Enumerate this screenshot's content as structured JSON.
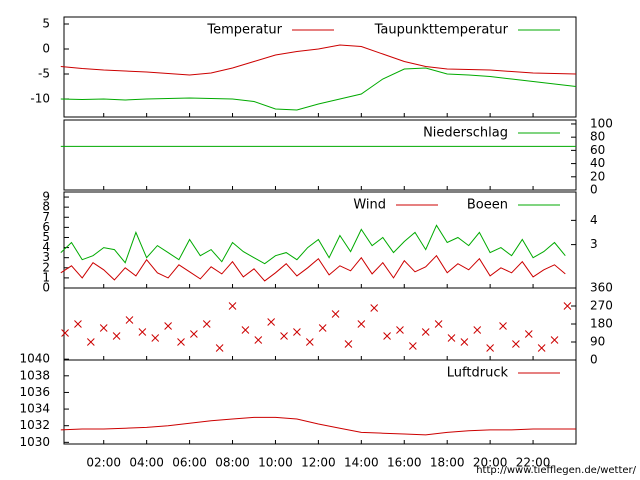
{
  "chart_data": [
    {
      "type": "line",
      "x": [
        0,
        1,
        2,
        3,
        4,
        5,
        6,
        7,
        8,
        9,
        10,
        11,
        12,
        13,
        14,
        15,
        16,
        17,
        18,
        19,
        20,
        21,
        22,
        23,
        24
      ],
      "series": [
        {
          "name": "Temperatur",
          "color": "#cc0000",
          "values": [
            -3.5,
            -3.9,
            -4.2,
            -4.4,
            -4.6,
            -4.9,
            -5.2,
            -4.8,
            -3.8,
            -2.5,
            -1.2,
            -0.5,
            0,
            0.8,
            0.5,
            -1,
            -2.5,
            -3.5,
            -4,
            -4.1,
            -4.2,
            -4.5,
            -4.8,
            -4.9,
            -5
          ]
        },
        {
          "name": "Taupunkttemperatur",
          "color": "#00aa00",
          "values": [
            -10,
            -10.1,
            -10,
            -10.2,
            -10,
            -9.9,
            -9.8,
            -9.9,
            -10,
            -10.5,
            -12,
            -12.2,
            -11,
            -10,
            -9,
            -6,
            -4,
            -3.8,
            -5,
            -5.2,
            -5.5,
            -6,
            -6.5,
            -7,
            -7.5
          ]
        }
      ],
      "xlim": [
        0.15,
        24
      ],
      "ylim": [
        -13.6,
        6.4
      ],
      "yticks": [
        -10,
        -5,
        0,
        5
      ],
      "yaxis_side": "left"
    },
    {
      "type": "line",
      "x": [
        0,
        24
      ],
      "series": [
        {
          "name": "Niederschlag",
          "color": "#00aa00",
          "values": [
            66,
            66
          ]
        }
      ],
      "xlim": [
        0.15,
        24
      ],
      "ylim": [
        0,
        106
      ],
      "yticks": [
        0,
        20,
        40,
        60,
        80,
        100
      ],
      "yaxis_side": "right"
    },
    {
      "type": "line",
      "x": [
        0,
        0.5,
        1,
        1.5,
        2,
        2.5,
        3,
        3.5,
        4,
        4.5,
        5,
        5.5,
        6,
        6.5,
        7,
        7.5,
        8,
        8.5,
        9,
        9.5,
        10,
        10.5,
        11,
        11.5,
        12,
        12.5,
        13,
        13.5,
        14,
        14.5,
        15,
        15.5,
        16,
        16.5,
        17,
        17.5,
        18,
        18.5,
        19,
        19.5,
        20,
        20.5,
        21,
        21.5,
        22,
        22.5,
        23,
        23.5
      ],
      "series": [
        {
          "name": "Wind",
          "color": "#cc0000",
          "values": [
            1.5,
            2.2,
            1.0,
            2.5,
            1.8,
            0.8,
            2.0,
            1.2,
            2.8,
            1.5,
            1.0,
            2.3,
            1.6,
            0.9,
            2.1,
            1.4,
            2.6,
            1.1,
            1.9,
            0.7,
            1.5,
            2.4,
            1.2,
            2.0,
            2.9,
            1.3,
            2.2,
            1.7,
            3.0,
            1.4,
            2.5,
            1.0,
            2.7,
            1.6,
            2.1,
            3.2,
            1.5,
            2.4,
            1.8,
            2.9,
            1.2,
            2.0,
            1.5,
            2.6,
            1.1,
            1.8,
            2.3,
            1.4
          ]
        },
        {
          "name": "Boeen",
          "color": "#00aa00",
          "values": [
            3.5,
            4.5,
            2.8,
            3.2,
            4.0,
            3.8,
            2.5,
            5.5,
            3.0,
            4.2,
            3.5,
            2.8,
            4.8,
            3.2,
            3.8,
            2.6,
            4.5,
            3.6,
            3.0,
            2.4,
            3.2,
            3.5,
            2.8,
            4.0,
            4.8,
            3.0,
            5.2,
            3.6,
            5.8,
            4.2,
            5.0,
            3.5,
            4.6,
            5.5,
            3.8,
            6.2,
            4.5,
            5.0,
            4.2,
            5.5,
            3.5,
            4.0,
            3.2,
            4.8,
            3.0,
            3.6,
            4.5,
            3.2
          ]
        }
      ],
      "xlim": [
        0.15,
        24
      ],
      "ylim": [
        0,
        9.5
      ],
      "yticks": [
        0,
        1,
        2,
        3,
        4,
        5,
        6,
        7,
        8,
        9
      ],
      "yaxis_side": "left",
      "y2lim": [
        1.21,
        5.17
      ],
      "y2ticks": [
        3,
        4
      ]
    },
    {
      "type": "scatter",
      "x": [
        0.2,
        0.8,
        1.4,
        2.0,
        2.6,
        3.2,
        3.8,
        4.4,
        5.0,
        5.6,
        6.2,
        6.8,
        7.4,
        8.0,
        8.6,
        9.2,
        9.8,
        10.4,
        11.0,
        11.6,
        12.2,
        12.8,
        13.4,
        14.0,
        14.6,
        15.2,
        15.8,
        16.4,
        17.0,
        17.6,
        18.2,
        18.8,
        19.4,
        20.0,
        20.6,
        21.2,
        21.8,
        22.4,
        23.0,
        23.6
      ],
      "series": [
        {
          "name": null,
          "color": "#cc0000",
          "values": [
            135,
            180,
            90,
            160,
            120,
            200,
            140,
            110,
            170,
            90,
            130,
            180,
            60,
            270,
            150,
            100,
            190,
            120,
            140,
            90,
            160,
            230,
            80,
            180,
            260,
            120,
            150,
            70,
            140,
            180,
            110,
            90,
            150,
            60,
            170,
            80,
            130,
            60,
            100,
            270
          ]
        }
      ],
      "xlim": [
        0.15,
        24
      ],
      "ylim": [
        0,
        360
      ],
      "yticks": [
        0,
        90,
        180,
        270,
        360
      ],
      "yaxis_side": "right"
    },
    {
      "type": "line",
      "x": [
        0,
        1,
        2,
        3,
        4,
        5,
        6,
        7,
        8,
        9,
        10,
        11,
        12,
        13,
        14,
        15,
        16,
        17,
        18,
        19,
        20,
        21,
        22,
        23,
        24
      ],
      "series": [
        {
          "name": "Luftdruck",
          "color": "#cc0000",
          "values": [
            1031.5,
            1031.6,
            1031.6,
            1031.7,
            1031.8,
            1032,
            1032.3,
            1032.6,
            1032.8,
            1033,
            1033,
            1032.8,
            1032.2,
            1031.7,
            1031.2,
            1031.1,
            1031,
            1030.9,
            1031.2,
            1031.4,
            1031.5,
            1031.5,
            1031.6,
            1031.6,
            1031.6
          ]
        }
      ],
      "xlim": [
        0.15,
        24
      ],
      "ylim": [
        1029.8,
        1039.9
      ],
      "yticks": [
        1030,
        1032,
        1034,
        1036,
        1038,
        1040
      ],
      "yaxis_side": "left",
      "xticks": [
        {
          "value": 2,
          "label": "02:00"
        },
        {
          "value": 4,
          "label": "04:00"
        },
        {
          "value": 6,
          "label": "06:00"
        },
        {
          "value": 8,
          "label": "08:00"
        },
        {
          "value": 10,
          "label": "10:00"
        },
        {
          "value": 12,
          "label": "12:00"
        },
        {
          "value": 14,
          "label": "14:00"
        },
        {
          "value": 16,
          "label": "16:00"
        },
        {
          "value": 18,
          "label": "18:00"
        },
        {
          "value": 20,
          "label": "20:00"
        },
        {
          "value": 22,
          "label": "22:00"
        }
      ],
      "footer": "http://www.tiefflegen.de/wetter/"
    }
  ]
}
